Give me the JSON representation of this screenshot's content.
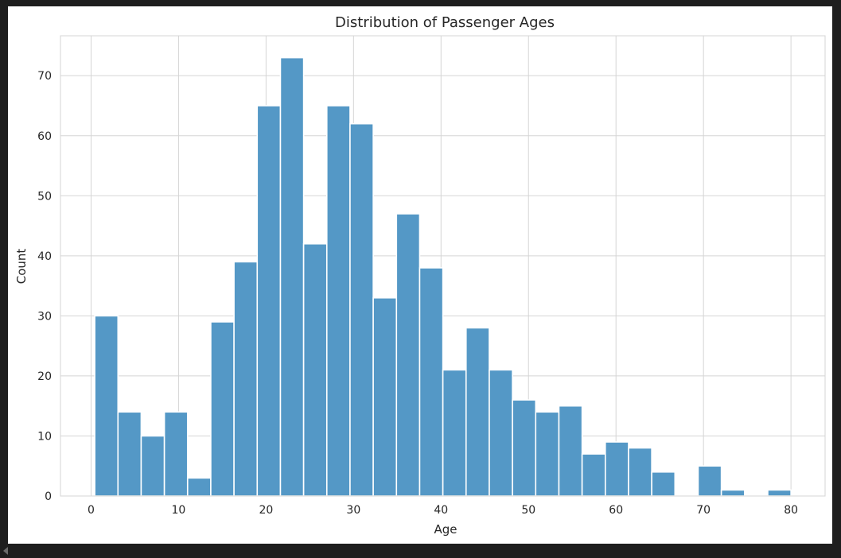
{
  "chart_data": {
    "type": "bar",
    "title": "Distribution of Passenger Ages",
    "xlabel": "Age",
    "ylabel": "Count",
    "bin_start": 0.42,
    "bin_width": 2.6527,
    "values": [
      30,
      14,
      10,
      14,
      3,
      29,
      39,
      65,
      73,
      42,
      65,
      62,
      33,
      47,
      38,
      21,
      28,
      21,
      16,
      14,
      15,
      7,
      9,
      8,
      4,
      0,
      5,
      1,
      0,
      1
    ],
    "xlim": [
      -3.5,
      83.9
    ],
    "ylim": [
      0,
      76.65
    ],
    "xticks": [
      0,
      10,
      20,
      30,
      40,
      50,
      60,
      70,
      80
    ],
    "yticks": [
      0,
      10,
      20,
      30,
      40,
      50,
      60,
      70
    ],
    "grid": true,
    "bar_color": "#5498c6",
    "edge_color": "#ffffff",
    "grid_color": "#d5d5d5",
    "axes_edge_color": "#d5d5d5"
  }
}
